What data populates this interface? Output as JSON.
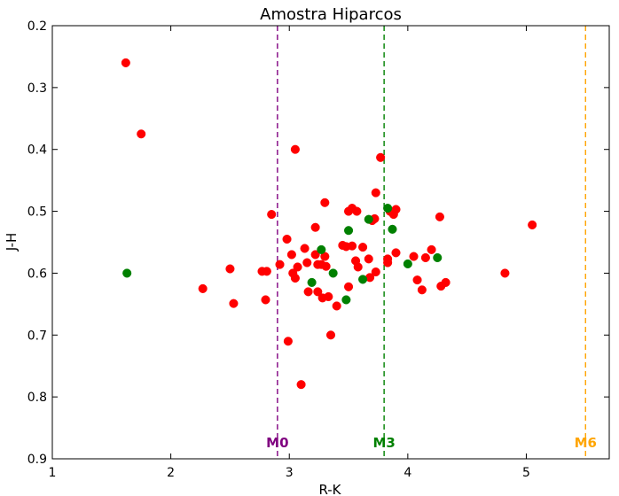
{
  "chart_data": {
    "type": "scatter",
    "title": "Amostra Hiparcos",
    "xlabel": "R-K",
    "ylabel": "J-H",
    "xlim": [
      1,
      5.7
    ],
    "ylim": [
      0.9,
      0.2
    ],
    "y_inverted": true,
    "x_ticks": [
      1,
      2,
      3,
      4,
      5
    ],
    "x_tick_labels": [
      "1",
      "2",
      "3",
      "4",
      "5"
    ],
    "y_ticks": [
      0.2,
      0.3,
      0.4,
      0.5,
      0.6,
      0.7,
      0.8,
      0.9
    ],
    "y_tick_labels": [
      "0.2",
      "0.3",
      "0.4",
      "0.5",
      "0.6",
      "0.7",
      "0.8",
      "0.9"
    ],
    "grid": false,
    "series": [
      {
        "color": "#ff0000",
        "points": [
          [
            1.62,
            0.26
          ],
          [
            1.75,
            0.375
          ],
          [
            3.05,
            0.4
          ],
          [
            3.77,
            0.413
          ],
          [
            3.73,
            0.47
          ],
          [
            3.3,
            0.486
          ],
          [
            3.5,
            0.5
          ],
          [
            3.53,
            0.495
          ],
          [
            3.57,
            0.5
          ],
          [
            2.85,
            0.505
          ],
          [
            3.7,
            0.515
          ],
          [
            3.72,
            0.512
          ],
          [
            3.85,
            0.5
          ],
          [
            3.88,
            0.505
          ],
          [
            3.9,
            0.497
          ],
          [
            4.27,
            0.509
          ],
          [
            5.05,
            0.522
          ],
          [
            3.22,
            0.526
          ],
          [
            2.98,
            0.545
          ],
          [
            3.45,
            0.555
          ],
          [
            3.48,
            0.557
          ],
          [
            3.53,
            0.556
          ],
          [
            3.62,
            0.558
          ],
          [
            3.13,
            0.56
          ],
          [
            3.9,
            0.567
          ],
          [
            4.2,
            0.562
          ],
          [
            3.02,
            0.57
          ],
          [
            3.22,
            0.57
          ],
          [
            3.3,
            0.573
          ],
          [
            4.05,
            0.573
          ],
          [
            4.15,
            0.575
          ],
          [
            3.56,
            0.58
          ],
          [
            3.67,
            0.577
          ],
          [
            3.83,
            0.577
          ],
          [
            3.83,
            0.583
          ],
          [
            3.15,
            0.583
          ],
          [
            3.24,
            0.586
          ],
          [
            3.27,
            0.586
          ],
          [
            3.31,
            0.589
          ],
          [
            3.58,
            0.59
          ],
          [
            2.92,
            0.586
          ],
          [
            3.07,
            0.59
          ],
          [
            2.5,
            0.593
          ],
          [
            2.77,
            0.597
          ],
          [
            2.81,
            0.597
          ],
          [
            3.03,
            0.6
          ],
          [
            3.73,
            0.598
          ],
          [
            4.82,
            0.6
          ],
          [
            3.05,
            0.608
          ],
          [
            3.68,
            0.607
          ],
          [
            4.08,
            0.611
          ],
          [
            4.32,
            0.615
          ],
          [
            4.28,
            0.621
          ],
          [
            3.5,
            0.622
          ],
          [
            4.12,
            0.627
          ],
          [
            2.27,
            0.625
          ],
          [
            3.16,
            0.63
          ],
          [
            3.24,
            0.63
          ],
          [
            3.28,
            0.64
          ],
          [
            3.33,
            0.638
          ],
          [
            2.8,
            0.643
          ],
          [
            2.53,
            0.649
          ],
          [
            3.4,
            0.653
          ],
          [
            3.35,
            0.7
          ],
          [
            2.99,
            0.71
          ],
          [
            3.1,
            0.78
          ]
        ]
      },
      {
        "color": "#008000",
        "points": [
          [
            1.63,
            0.6
          ],
          [
            3.5,
            0.531
          ],
          [
            3.67,
            0.513
          ],
          [
            3.87,
            0.529
          ],
          [
            3.83,
            0.495
          ],
          [
            3.27,
            0.562
          ],
          [
            4.0,
            0.585
          ],
          [
            4.25,
            0.575
          ],
          [
            3.19,
            0.615
          ],
          [
            3.37,
            0.6
          ],
          [
            3.62,
            0.61
          ],
          [
            3.48,
            0.643
          ]
        ]
      }
    ],
    "reference_lines": [
      {
        "label": "M0",
        "x": 2.9,
        "color": "#800080"
      },
      {
        "label": "M3",
        "x": 3.8,
        "color": "#008000"
      },
      {
        "label": "M6",
        "x": 5.5,
        "color": "#ffa500"
      }
    ]
  }
}
